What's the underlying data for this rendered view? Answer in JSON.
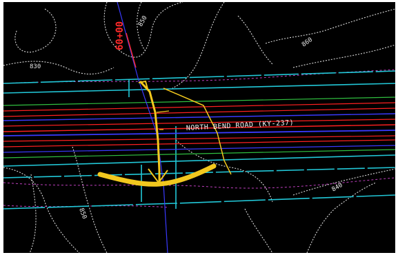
{
  "drawing": {
    "station_label": "60+00",
    "road_label": "NORTH BEND ROAD (KY-237)",
    "contour_labels": [
      "830",
      "850",
      "860",
      "840",
      "850"
    ]
  },
  "colors": {
    "background": "#000000",
    "frame": "#ffffff",
    "contours": "#dcdcdc",
    "right_of_way": "#22c8d8",
    "road_red": "#ff2020",
    "road_blue": "#3a3aff",
    "road_green": "#30c040",
    "road_purple": "#c040c0",
    "proposed": "#f2c81e",
    "station": "#ff2a2a"
  }
}
